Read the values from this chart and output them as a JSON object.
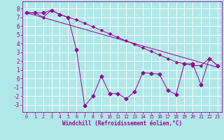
{
  "xlabel": "Windchill (Refroidissement éolien,°C)",
  "bg_color": "#b0e8e8",
  "line_color": "#990099",
  "grid_color": "#ffffff",
  "xlim": [
    -0.5,
    23.5
  ],
  "ylim": [
    -3.8,
    8.8
  ],
  "xticks": [
    0,
    1,
    2,
    3,
    4,
    5,
    6,
    7,
    8,
    9,
    10,
    11,
    12,
    13,
    14,
    15,
    16,
    17,
    18,
    19,
    20,
    21,
    22,
    23
  ],
  "yticks": [
    -3,
    -2,
    -1,
    0,
    1,
    2,
    3,
    4,
    5,
    6,
    7,
    8
  ],
  "main_y": [
    7.5,
    7.5,
    7.5,
    7.8,
    7.3,
    7.0,
    3.3,
    -3.1,
    -2.0,
    0.3,
    -1.7,
    -1.7,
    -2.3,
    -1.5,
    0.7,
    0.6,
    0.5,
    -1.3,
    -1.8,
    1.7,
    1.7,
    -0.7,
    2.3,
    1.5
  ],
  "line1_y": [
    7.5,
    7.5,
    7.0,
    7.8,
    7.3,
    7.0,
    6.7,
    6.3,
    5.9,
    5.5,
    5.1,
    4.7,
    4.3,
    3.9,
    3.5,
    3.1,
    2.7,
    2.3,
    1.9,
    1.7,
    1.5,
    1.5,
    2.3,
    1.5
  ],
  "line2_x": [
    0,
    23
  ],
  "line2_y": [
    7.5,
    1.3
  ],
  "marker_size_main": 2.5,
  "marker_size_line1": 1.8,
  "lw": 0.7
}
